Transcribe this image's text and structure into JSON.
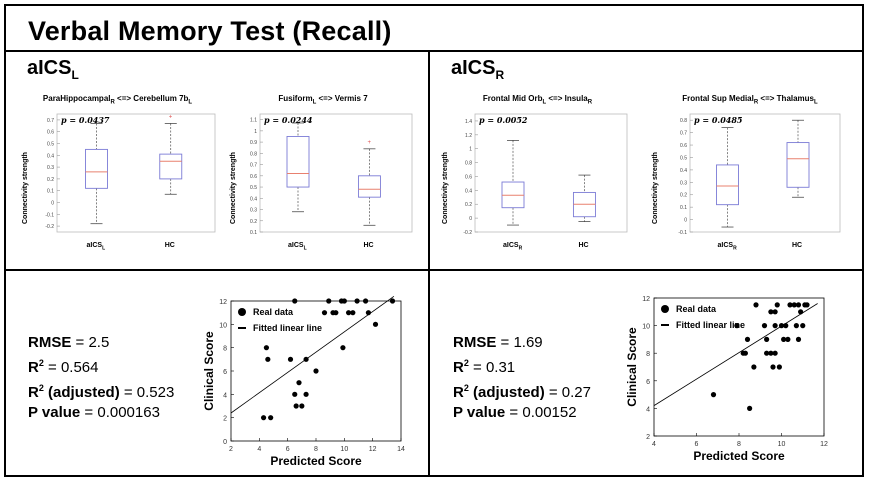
{
  "title": "Verbal Memory Test (Recall)",
  "groups": {
    "left": {
      "label": "aICS",
      "sub": "L"
    },
    "right": {
      "label": "aICS",
      "sub": "R"
    }
  },
  "boxplots": [
    {
      "label_pre": "ParaHippocampal",
      "label_pre_sub": "R",
      "label_mid": " <=> Cerebellum 7b",
      "label_post_sub": "L",
      "p_text": "p = 0.0437",
      "ylabel": "Connectivity strength",
      "yticks": [
        "0.7",
        "0.6",
        "0.5",
        "0.4",
        "0.3",
        "0.2",
        "0.1",
        "0",
        "-0.1",
        "-0.2"
      ],
      "cat1": "aICS",
      "cat1_sub": "L",
      "cat2": "HC"
    },
    {
      "label_pre": "Fusiform",
      "label_pre_sub": "L",
      "label_mid": " <=> Vermis 7",
      "label_post_sub": "",
      "p_text": "p = 0.0244",
      "ylabel": "Connectivity strength",
      "yticks": [
        "1.1",
        "1",
        "0.9",
        "0.8",
        "0.7",
        "0.6",
        "0.5",
        "0.4",
        "0.3",
        "0.2",
        "0.1"
      ],
      "cat1": "aICS",
      "cat1_sub": "L",
      "cat2": "HC"
    },
    {
      "label_pre": "Frontal Mid Orb",
      "label_pre_sub": "L",
      "label_mid": " <=> Insula",
      "label_post_sub": "R",
      "p_text": "p = 0.0052",
      "ylabel": "Connectivity strength",
      "yticks": [
        "1.4",
        "1.2",
        "1",
        "0.8",
        "0.6",
        "0.4",
        "0.2",
        "0",
        "-0.2"
      ],
      "cat1": "aICS",
      "cat1_sub": "R",
      "cat2": "HC"
    },
    {
      "label_pre": "Frontal Sup Medial",
      "label_pre_sub": "R",
      "label_mid": " <=> Thalamus",
      "label_post_sub": "L",
      "p_text": "p = 0.0485",
      "ylabel": "Connectivity strength",
      "yticks": [
        "0.8",
        "0.7",
        "0.6",
        "0.5",
        "0.4",
        "0.3",
        "0.2",
        "0.1",
        "0",
        "-0.1"
      ],
      "cat1": "aICS",
      "cat1_sub": "R",
      "cat2": "HC"
    }
  ],
  "stats_left": {
    "rmse_label": "RMSE",
    "rmse": " = 2.5",
    "r2_label": "R",
    "r2": " = 0.564",
    "r2adj_label": "R",
    "r2adj_mid": " (adjusted)",
    "r2adj": " = 0.523",
    "p_label": "P value",
    "p": " = 0.000163"
  },
  "stats_right": {
    "rmse_label": "RMSE",
    "rmse": " = 1.69",
    "r2_label": "R",
    "r2": " = 0.31",
    "r2adj_label": "R",
    "r2adj_mid": " (adjusted)",
    "r2adj": " = 0.27",
    "p_label": "P value",
    "p": " = 0.00152"
  },
  "chart_data": [
    {
      "type": "box",
      "title": "ParaHippocampal_R <=> Cerebellum 7b_L",
      "ylabel": "Connectivity strength",
      "ylim": [
        -0.25,
        0.75
      ],
      "categories": [
        "aICS_L",
        "HC"
      ],
      "boxes": [
        {
          "min": -0.18,
          "q1": 0.12,
          "median": 0.26,
          "q3": 0.45,
          "max": 0.67,
          "outliers": []
        },
        {
          "min": 0.07,
          "q1": 0.2,
          "median": 0.35,
          "q3": 0.41,
          "max": 0.67,
          "outliers": [
            0.73
          ]
        }
      ],
      "annotation": "p = 0.0437"
    },
    {
      "type": "box",
      "title": "Fusiform_L <=> Vermis 7",
      "ylabel": "Connectivity strength",
      "ylim": [
        0.1,
        1.15
      ],
      "categories": [
        "aICS_L",
        "HC"
      ],
      "boxes": [
        {
          "min": 0.28,
          "q1": 0.5,
          "median": 0.62,
          "q3": 0.95,
          "max": 1.07,
          "outliers": []
        },
        {
          "min": 0.16,
          "q1": 0.41,
          "median": 0.48,
          "q3": 0.6,
          "max": 0.84,
          "outliers": [
            0.9
          ]
        }
      ],
      "annotation": "p = 0.0244"
    },
    {
      "type": "box",
      "title": "Frontal Mid Orb_L <=> Insula_R",
      "ylabel": "Connectivity strength",
      "ylim": [
        -0.2,
        1.5
      ],
      "categories": [
        "aICS_R",
        "HC"
      ],
      "boxes": [
        {
          "min": -0.1,
          "q1": 0.15,
          "median": 0.33,
          "q3": 0.52,
          "max": 1.12,
          "outliers": []
        },
        {
          "min": -0.05,
          "q1": 0.02,
          "median": 0.2,
          "q3": 0.37,
          "max": 0.62,
          "outliers": []
        }
      ],
      "annotation": "p = 0.0052"
    },
    {
      "type": "box",
      "title": "Frontal Sup Medial_R <=> Thalamus_L",
      "ylabel": "Connectivity strength",
      "ylim": [
        -0.1,
        0.85
      ],
      "categories": [
        "aICS_R",
        "HC"
      ],
      "boxes": [
        {
          "min": -0.06,
          "q1": 0.12,
          "median": 0.27,
          "q3": 0.44,
          "max": 0.74,
          "outliers": []
        },
        {
          "min": 0.18,
          "q1": 0.26,
          "median": 0.49,
          "q3": 0.62,
          "max": 0.8,
          "outliers": []
        }
      ],
      "annotation": "p = 0.0485"
    },
    {
      "type": "scatter",
      "xlabel": "Predicted Score",
      "ylabel": "Clinical Score",
      "xlim": [
        2,
        14
      ],
      "ylim": [
        0,
        12
      ],
      "xticks": [
        2,
        4,
        6,
        8,
        10,
        12,
        14
      ],
      "yticks": [
        0,
        2,
        4,
        6,
        8,
        10,
        12
      ],
      "legend": [
        "Real data",
        "Fitted linear line"
      ],
      "points": [
        [
          4.3,
          2
        ],
        [
          4.5,
          8
        ],
        [
          4.8,
          2
        ],
        [
          4.6,
          7
        ],
        [
          6.2,
          7
        ],
        [
          6.5,
          12
        ],
        [
          6.5,
          4
        ],
        [
          6.6,
          3
        ],
        [
          6.8,
          5
        ],
        [
          7,
          3
        ],
        [
          7.3,
          4
        ],
        [
          7.3,
          7
        ],
        [
          8,
          6
        ],
        [
          8.6,
          11
        ],
        [
          8.9,
          12
        ],
        [
          9.2,
          11
        ],
        [
          9.4,
          11
        ],
        [
          9.9,
          8
        ],
        [
          9.8,
          12
        ],
        [
          10,
          12
        ],
        [
          10.3,
          11
        ],
        [
          10.6,
          11
        ],
        [
          10.9,
          12
        ],
        [
          11.5,
          12
        ],
        [
          11.7,
          11
        ],
        [
          12.2,
          10
        ],
        [
          13.4,
          12
        ]
      ],
      "fit": {
        "x": [
          2,
          13.5
        ],
        "y": [
          2.4,
          12.4
        ]
      }
    },
    {
      "type": "scatter",
      "xlabel": "Predicted Score",
      "ylabel": "Clinical Score",
      "xlim": [
        4,
        12
      ],
      "ylim": [
        2,
        12
      ],
      "xticks": [
        4,
        6,
        8,
        10,
        12
      ],
      "yticks": [
        2,
        4,
        6,
        8,
        10,
        12
      ],
      "legend": [
        "Real data",
        "Fitted linear line"
      ],
      "points": [
        [
          6.8,
          5
        ],
        [
          7.9,
          10
        ],
        [
          8.2,
          8
        ],
        [
          8.3,
          8
        ],
        [
          8.4,
          9
        ],
        [
          8.5,
          4
        ],
        [
          8.7,
          7
        ],
        [
          8.8,
          11.5
        ],
        [
          9.2,
          10
        ],
        [
          9.3,
          9
        ],
        [
          9.3,
          8
        ],
        [
          9.5,
          11
        ],
        [
          9.5,
          8
        ],
        [
          9.6,
          7
        ],
        [
          9.7,
          11
        ],
        [
          9.7,
          10
        ],
        [
          9.7,
          8
        ],
        [
          9.8,
          11.5
        ],
        [
          9.9,
          7
        ],
        [
          10,
          10
        ],
        [
          10.1,
          9
        ],
        [
          10.2,
          10
        ],
        [
          10.3,
          9
        ],
        [
          10.4,
          11.5
        ],
        [
          10.6,
          11.5
        ],
        [
          10.7,
          10
        ],
        [
          10.8,
          9
        ],
        [
          10.8,
          11.5
        ],
        [
          10.9,
          11
        ],
        [
          11,
          10
        ],
        [
          11.1,
          11.5
        ],
        [
          11.2,
          11.5
        ]
      ],
      "fit": {
        "x": [
          4,
          11.7
        ],
        "y": [
          4.2,
          11.6
        ]
      }
    }
  ]
}
